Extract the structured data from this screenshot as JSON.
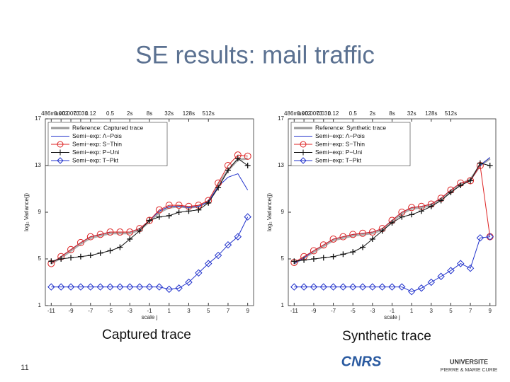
{
  "title": "SE results: mail traffic",
  "captions": [
    "Captured trace",
    "Synthetic trace"
  ],
  "page_number": "11",
  "logos": [
    "CNRS",
    "UNIVERSITE",
    "PIERRE & MARIE CURIE"
  ],
  "chart_data": [
    {
      "type": "line",
      "x_label": "scale j",
      "y_label": "log₂ Variance(j)",
      "x": [
        -11,
        -10,
        -9,
        -8,
        -7,
        -6,
        -5,
        -4,
        -3,
        -2,
        -1,
        0,
        1,
        2,
        3,
        4,
        5,
        6,
        7,
        8,
        9
      ],
      "xlim": [
        -11.6,
        9.6
      ],
      "xticks": [
        -11,
        -9,
        -7,
        -5,
        -3,
        -1,
        1,
        3,
        5,
        7,
        9
      ],
      "x2ticks": [
        {
          "value": -11,
          "label": "486mus"
        },
        {
          "value": -10,
          "label": "0.002"
        },
        {
          "value": -9,
          "label": "0.0073"
        },
        {
          "value": -8,
          "label": "0.031"
        },
        {
          "value": -7,
          "label": "0.12"
        },
        {
          "value": -5,
          "label": "0.5"
        },
        {
          "value": -3,
          "label": "2s"
        },
        {
          "value": -1,
          "label": "8s"
        },
        {
          "value": 1,
          "label": "32s"
        },
        {
          "value": 3,
          "label": "128s"
        },
        {
          "value": 5,
          "label": "512s"
        }
      ],
      "ylim": [
        1,
        17
      ],
      "yticks": [
        1,
        5,
        9,
        13,
        17
      ],
      "series": [
        {
          "name": "Reference: Captured trace",
          "color": "#9a9a9a",
          "marker": "none",
          "width": 3,
          "values": [
            4.6,
            5.1,
            5.7,
            6.3,
            6.8,
            7.0,
            7.2,
            7.2,
            7.2,
            7.5,
            8.2,
            9.0,
            9.4,
            9.5,
            9.4,
            9.5,
            9.9,
            11.3,
            12.6,
            13.5,
            13.6
          ]
        },
        {
          "name": "Semi−exp: Λ−Pois",
          "color": "#2233cc",
          "marker": "none",
          "width": 1,
          "values": [
            4.6,
            5.2,
            5.8,
            6.4,
            6.9,
            7.1,
            7.3,
            7.3,
            7.3,
            7.6,
            8.3,
            9.1,
            9.5,
            9.5,
            9.4,
            9.5,
            9.9,
            11.2,
            12.0,
            12.3,
            10.9
          ]
        },
        {
          "name": "Semi−exp: S−Thin",
          "color": "#dd2222",
          "marker": "circle",
          "width": 1,
          "values": [
            4.6,
            5.2,
            5.8,
            6.4,
            6.9,
            7.1,
            7.3,
            7.3,
            7.3,
            7.6,
            8.3,
            9.2,
            9.6,
            9.6,
            9.5,
            9.6,
            10.0,
            11.5,
            13.0,
            13.9,
            13.8
          ]
        },
        {
          "name": "Semi−exp: P−Uni",
          "color": "#111111",
          "marker": "plus",
          "width": 1,
          "values": [
            4.8,
            5.0,
            5.1,
            5.2,
            5.3,
            5.5,
            5.7,
            6.0,
            6.7,
            7.4,
            8.3,
            8.6,
            8.7,
            9.0,
            9.1,
            9.2,
            9.8,
            11.1,
            12.6,
            13.6,
            13.0
          ]
        },
        {
          "name": "Semi−exp: T−Pkt",
          "color": "#2233cc",
          "marker": "diamond",
          "width": 1,
          "values": [
            2.6,
            2.6,
            2.6,
            2.6,
            2.6,
            2.6,
            2.6,
            2.6,
            2.6,
            2.6,
            2.6,
            2.6,
            2.4,
            2.5,
            3.0,
            3.8,
            4.6,
            5.3,
            6.2,
            6.9,
            8.6
          ]
        }
      ]
    },
    {
      "type": "line",
      "x_label": "scale j",
      "y_label": "log₂ Variance(j)",
      "x": [
        -11,
        -10,
        -9,
        -8,
        -7,
        -6,
        -5,
        -4,
        -3,
        -2,
        -1,
        0,
        1,
        2,
        3,
        4,
        5,
        6,
        7,
        8,
        9
      ],
      "xlim": [
        -11.6,
        9.6
      ],
      "xticks": [
        -11,
        -9,
        -7,
        -5,
        -3,
        -1,
        1,
        3,
        5,
        7,
        9
      ],
      "x2ticks": [
        {
          "value": -11,
          "label": "486mus"
        },
        {
          "value": -10,
          "label": "0.002"
        },
        {
          "value": -9,
          "label": "0.0073"
        },
        {
          "value": -8,
          "label": "0.031"
        },
        {
          "value": -7,
          "label": "0.12"
        },
        {
          "value": -5,
          "label": "0.5"
        },
        {
          "value": -3,
          "label": "2s"
        },
        {
          "value": -1,
          "label": "8s"
        },
        {
          "value": 1,
          "label": "32s"
        },
        {
          "value": 3,
          "label": "128s"
        },
        {
          "value": 5,
          "label": "512s"
        }
      ],
      "ylim": [
        1,
        17
      ],
      "yticks": [
        1,
        5,
        9,
        13,
        17
      ],
      "series": [
        {
          "name": "Reference: Synthetic trace",
          "color": "#9a9a9a",
          "marker": "none",
          "width": 3,
          "values": [
            4.6,
            5.1,
            5.6,
            6.1,
            6.6,
            6.8,
            7.0,
            7.1,
            7.2,
            7.5,
            8.2,
            8.9,
            9.3,
            9.4,
            9.6,
            10.1,
            10.8,
            11.4,
            11.8,
            13.0,
            13.6
          ]
        },
        {
          "name": "Semi−exp: Λ−Pois",
          "color": "#2233cc",
          "marker": "none",
          "width": 1,
          "values": [
            4.6,
            5.1,
            5.7,
            6.2,
            6.7,
            6.9,
            7.1,
            7.2,
            7.3,
            7.6,
            8.3,
            9.0,
            9.4,
            9.5,
            9.7,
            10.2,
            10.9,
            11.5,
            11.7,
            13.0,
            13.7
          ]
        },
        {
          "name": "Semi−exp: S−Thin",
          "color": "#dd2222",
          "marker": "circle",
          "width": 1,
          "values": [
            4.7,
            5.2,
            5.7,
            6.2,
            6.7,
            6.9,
            7.1,
            7.2,
            7.3,
            7.6,
            8.3,
            9.0,
            9.4,
            9.5,
            9.7,
            10.2,
            10.9,
            11.5,
            11.7,
            13.0,
            6.9
          ]
        },
        {
          "name": "Semi−exp: P−Uni",
          "color": "#111111",
          "marker": "plus",
          "width": 1,
          "values": [
            4.8,
            4.9,
            5.0,
            5.1,
            5.2,
            5.4,
            5.6,
            6.0,
            6.7,
            7.4,
            8.1,
            8.6,
            8.8,
            9.1,
            9.5,
            10.0,
            10.7,
            11.3,
            11.7,
            13.2,
            13.0
          ]
        },
        {
          "name": "Semi−exp: T−Pkt",
          "color": "#2233cc",
          "marker": "diamond",
          "width": 1,
          "values": [
            2.6,
            2.6,
            2.6,
            2.6,
            2.6,
            2.6,
            2.6,
            2.6,
            2.6,
            2.6,
            2.6,
            2.6,
            2.2,
            2.5,
            3.0,
            3.5,
            4.0,
            4.6,
            4.2,
            6.8,
            6.9
          ]
        }
      ]
    }
  ]
}
